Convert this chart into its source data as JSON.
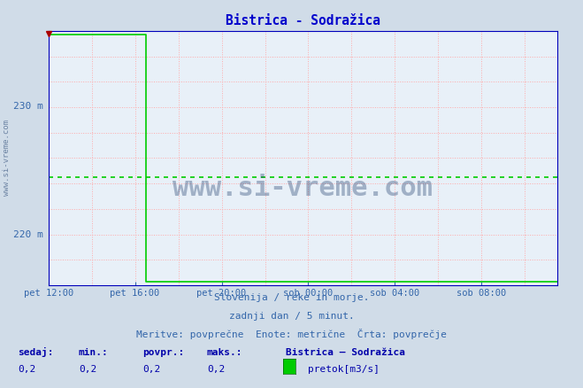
{
  "title": "Bistrica - Sodražica",
  "title_color": "#0000cc",
  "bg_color": "#d0dce8",
  "plot_bg_color": "#e8f0f8",
  "border_color": "#0000bb",
  "xlabel_color": "#3366aa",
  "ylabel_color": "#3366aa",
  "x_tick_labels": [
    "pet 12:00",
    "pet 16:00",
    "pet 20:00",
    "sob 00:00",
    "sob 04:00",
    "sob 08:00"
  ],
  "x_tick_positions": [
    0,
    4,
    8,
    12,
    16,
    20
  ],
  "y_tick_labels": [
    "220 m",
    "230 m"
  ],
  "y_tick_positions": [
    220,
    230
  ],
  "ymin": 216.0,
  "ymax": 235.8,
  "xmin": 0,
  "xmax": 23.5,
  "line_color": "#00cc00",
  "avg_line_color": "#00cc00",
  "avg_line_value": 224.4,
  "line_high_value": 235.5,
  "line_low_value": 216.3,
  "drop_x": 4.5,
  "grid_color_v": "#ffaaaa",
  "grid_color_h": "#ffaaaa",
  "watermark": "www.si-vreme.com",
  "watermark_color": "#1a3a6a",
  "footer_line1": "Slovenija / reke in morje.",
  "footer_line2": "zadnji dan / 5 minut.",
  "footer_line3": "Meritve: povprečne  Enote: metrične  Črta: povprečje",
  "footer_color": "#3366aa",
  "legend_title": "Bistrica – Sodražica",
  "legend_label": "pretok[m3/s]",
  "legend_color": "#00cc00",
  "stats_labels": [
    "sedaj:",
    "min.:",
    "povpr.:",
    "maks.:"
  ],
  "stats_values": [
    "0,2",
    "0,2",
    "0,2",
    "0,2"
  ],
  "stats_color": "#0000aa",
  "arrow_color": "#aa0000"
}
